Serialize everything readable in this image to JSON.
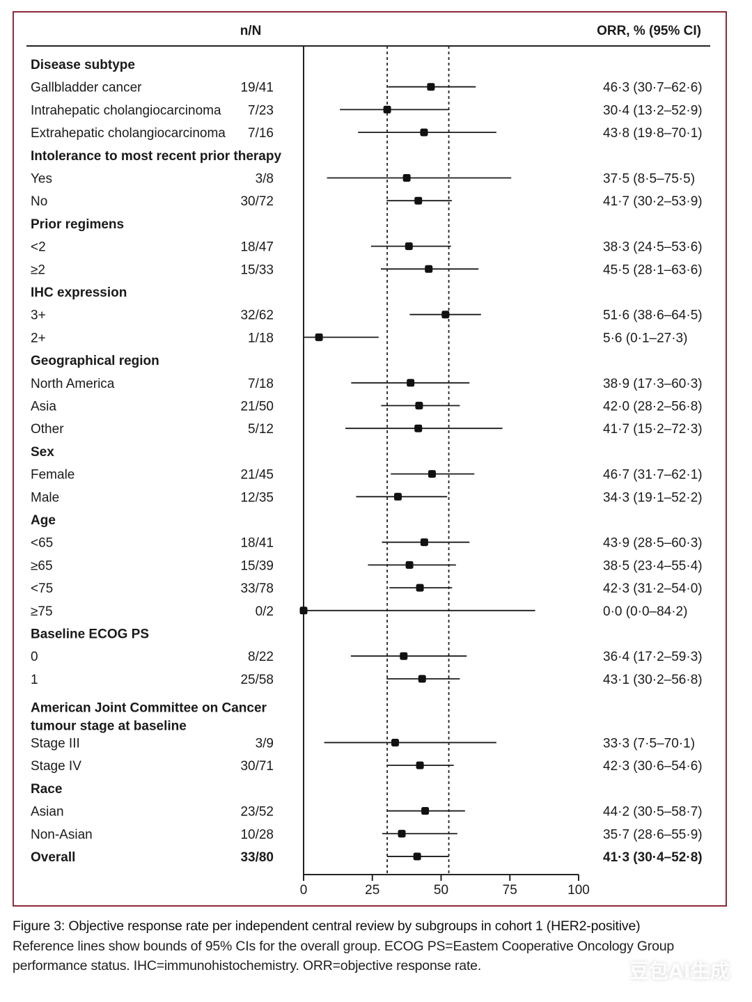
{
  "chart_data": {
    "type": "forest",
    "headers": {
      "count": "n/N",
      "estimate": "ORR, % (95% CI)"
    },
    "xaxis": {
      "ticks": [
        0,
        25,
        50,
        75,
        100
      ],
      "range": [
        0,
        100
      ]
    },
    "reference_lines": [
      30.4,
      52.8
    ],
    "rows": [
      {
        "kind": "group",
        "label": "Disease subtype"
      },
      {
        "kind": "item",
        "label": "Gallbladder cancer",
        "n": "19/41",
        "est": 46.3,
        "lo": 30.7,
        "hi": 62.6,
        "text": "46·3 (30·7–62·6)"
      },
      {
        "kind": "item",
        "label": "Intrahepatic cholangiocarcinoma",
        "n": "7/23",
        "est": 30.4,
        "lo": 13.2,
        "hi": 52.9,
        "text": "30·4 (13·2–52·9)"
      },
      {
        "kind": "item",
        "label": "Extrahepatic cholangiocarcinoma",
        "n": "7/16",
        "est": 43.8,
        "lo": 19.8,
        "hi": 70.1,
        "text": "43·8 (19·8–70·1)"
      },
      {
        "kind": "group",
        "label": "Intolerance to most recent prior therapy"
      },
      {
        "kind": "item",
        "label": "Yes",
        "n": "3/8",
        "est": 37.5,
        "lo": 8.5,
        "hi": 75.5,
        "text": "37·5 (8·5–75·5)"
      },
      {
        "kind": "item",
        "label": "No",
        "n": "30/72",
        "est": 41.7,
        "lo": 30.2,
        "hi": 53.9,
        "text": "41·7 (30·2–53·9)"
      },
      {
        "kind": "group",
        "label": "Prior regimens"
      },
      {
        "kind": "item",
        "label": "<2",
        "n": "18/47",
        "est": 38.3,
        "lo": 24.5,
        "hi": 53.6,
        "text": "38·3 (24·5–53·6)"
      },
      {
        "kind": "item",
        "label": "≥2",
        "n": "15/33",
        "est": 45.5,
        "lo": 28.1,
        "hi": 63.6,
        "text": "45·5 (28·1–63·6)"
      },
      {
        "kind": "group",
        "label": "IHC expression"
      },
      {
        "kind": "item",
        "label": "3+",
        "n": "32/62",
        "est": 51.6,
        "lo": 38.6,
        "hi": 64.5,
        "text": "51·6 (38·6–64·5)"
      },
      {
        "kind": "item",
        "label": "2+",
        "n": "1/18",
        "est": 5.6,
        "lo": 0.1,
        "hi": 27.3,
        "text": "5·6 (0·1–27·3)"
      },
      {
        "kind": "group",
        "label": "Geographical region"
      },
      {
        "kind": "item",
        "label": "North America",
        "n": "7/18",
        "est": 38.9,
        "lo": 17.3,
        "hi": 60.3,
        "text": "38·9 (17·3–60·3)"
      },
      {
        "kind": "item",
        "label": "Asia",
        "n": "21/50",
        "est": 42.0,
        "lo": 28.2,
        "hi": 56.8,
        "text": "42·0 (28·2–56·8)"
      },
      {
        "kind": "item",
        "label": "Other",
        "n": "5/12",
        "est": 41.7,
        "lo": 15.2,
        "hi": 72.3,
        "text": "41·7 (15·2–72·3)"
      },
      {
        "kind": "group",
        "label": "Sex"
      },
      {
        "kind": "item",
        "label": "Female",
        "n": "21/45",
        "est": 46.7,
        "lo": 31.7,
        "hi": 62.1,
        "text": "46·7 (31·7–62·1)"
      },
      {
        "kind": "item",
        "label": "Male",
        "n": "12/35",
        "est": 34.3,
        "lo": 19.1,
        "hi": 52.2,
        "text": "34·3 (19·1–52·2)"
      },
      {
        "kind": "group",
        "label": "Age"
      },
      {
        "kind": "item",
        "label": "<65",
        "n": "18/41",
        "est": 43.9,
        "lo": 28.5,
        "hi": 60.3,
        "text": "43·9 (28·5–60·3)"
      },
      {
        "kind": "item",
        "label": "≥65",
        "n": "15/39",
        "est": 38.5,
        "lo": 23.4,
        "hi": 55.4,
        "text": "38·5 (23·4–55·4)"
      },
      {
        "kind": "item",
        "label": "<75",
        "n": "33/78",
        "est": 42.3,
        "lo": 31.2,
        "hi": 54.0,
        "text": "42·3 (31·2–54·0)"
      },
      {
        "kind": "item",
        "label": "≥75",
        "n": "0/2",
        "est": 0.0,
        "lo": 0.0,
        "hi": 84.2,
        "text": "0·0 (0·0–84·2)"
      },
      {
        "kind": "group",
        "label": "Baseline ECOG PS"
      },
      {
        "kind": "item",
        "label": "0",
        "n": "8/22",
        "est": 36.4,
        "lo": 17.2,
        "hi": 59.3,
        "text": "36·4 (17·2–59·3)"
      },
      {
        "kind": "item",
        "label": "1",
        "n": "25/58",
        "est": 43.1,
        "lo": 30.2,
        "hi": 56.8,
        "text": "43·1 (30·2–56·8)"
      },
      {
        "kind": "group2",
        "label": "American Joint Committee on Cancer",
        "label2": "tumour stage at baseline"
      },
      {
        "kind": "item",
        "label": "Stage III",
        "n": "3/9",
        "est": 33.3,
        "lo": 7.5,
        "hi": 70.1,
        "text": "33·3 (7·5–70·1)"
      },
      {
        "kind": "item",
        "label": "Stage IV",
        "n": "30/71",
        "est": 42.3,
        "lo": 30.6,
        "hi": 54.6,
        "text": "42·3 (30·6–54·6)"
      },
      {
        "kind": "group",
        "label": "Race"
      },
      {
        "kind": "item",
        "label": "Asian",
        "n": "23/52",
        "est": 44.2,
        "lo": 30.5,
        "hi": 58.7,
        "text": "44·2 (30·5–58·7)"
      },
      {
        "kind": "item",
        "label": "Non-Asian",
        "n": "10/28",
        "est": 35.7,
        "lo": 28.6,
        "hi": 55.9,
        "text": "35·7 (28·6–55·9)"
      },
      {
        "kind": "overall",
        "label": "Overall",
        "n": "33/80",
        "est": 41.3,
        "lo": 30.4,
        "hi": 52.8,
        "text": "41·3 (30·4–52·8)"
      }
    ]
  },
  "caption": {
    "title": "Figure 3: Objective response rate per independent central review by subgroups in cohort 1 (HER2-positive)",
    "body": "Reference lines show bounds of 95% CIs for the overall group. ECOG PS=Eastem Cooperative Oncology Group performance status. IHC=immunohistochemistry. ORR=objective response rate."
  },
  "watermark": "豆包AI生成"
}
